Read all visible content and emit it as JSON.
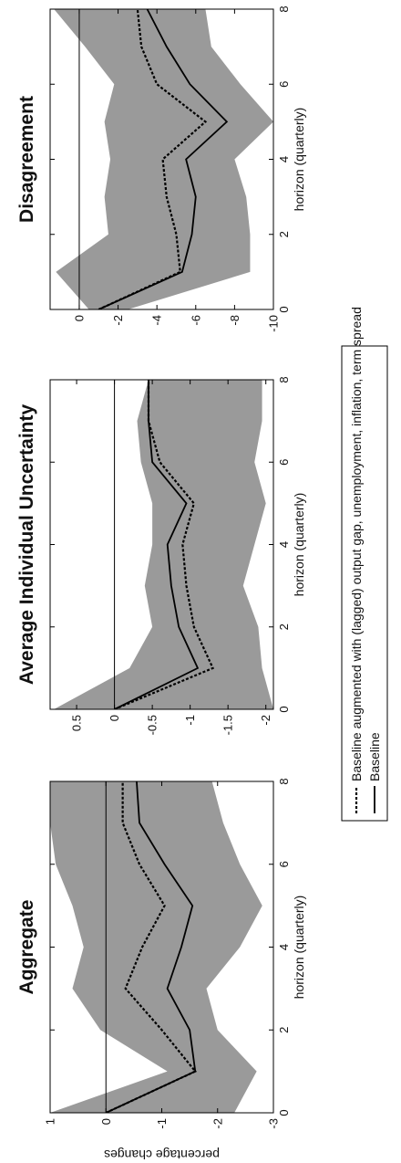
{
  "chart_data": [
    {
      "type": "line",
      "title": "Aggregate",
      "xlabel": "horizon (quarterly)",
      "ylabel": "percentage changes",
      "xlim": [
        0,
        8
      ],
      "ylim": [
        -3,
        1
      ],
      "xticks": [
        0,
        2,
        4,
        6,
        8
      ],
      "yticks": [
        1,
        0,
        -1,
        -2,
        -3
      ],
      "ytick_labels": [
        "1",
        "0",
        "-1",
        "-2",
        "-3"
      ],
      "x": [
        0,
        1,
        2,
        3,
        4,
        5,
        6,
        7,
        8
      ],
      "band_upper": [
        1.0,
        -1.1,
        0.1,
        0.6,
        0.4,
        0.6,
        0.9,
        1.0,
        1.0
      ],
      "band_lower": [
        -2.3,
        -2.7,
        -2.0,
        -1.8,
        -2.4,
        -2.8,
        -2.4,
        -2.1,
        -1.9
      ],
      "series": [
        {
          "name": "Baseline augmented with (lagged) output gap, unemployment, inflation, term spread",
          "style": "dotted",
          "values": [
            0.0,
            -1.6,
            -1.0,
            -0.35,
            -0.65,
            -1.05,
            -0.6,
            -0.3,
            -0.3
          ]
        },
        {
          "name": "Baseline",
          "style": "solid",
          "values": [
            0.0,
            -1.6,
            -1.5,
            -1.1,
            -1.35,
            -1.55,
            -1.05,
            -0.6,
            -0.55
          ]
        }
      ]
    },
    {
      "type": "line",
      "title": "Average Individual Uncertainty",
      "xlabel": "horizon (quarterly)",
      "ylabel": "",
      "xlim": [
        0,
        8
      ],
      "ylim": [
        -2.1,
        0.85
      ],
      "xticks": [
        0,
        2,
        4,
        6,
        8
      ],
      "yticks": [
        0.5,
        0,
        -0.5,
        -1,
        -1.5,
        -2
      ],
      "ytick_labels": [
        "0.5",
        "0",
        "-0.5",
        "-1",
        "-1.5",
        "-2"
      ],
      "x": [
        0,
        1,
        2,
        3,
        4,
        5,
        6,
        7,
        8
      ],
      "band_upper": [
        0.8,
        -0.2,
        -0.5,
        -0.4,
        -0.5,
        -0.5,
        -0.35,
        -0.3,
        -0.45
      ],
      "band_lower": [
        -2.1,
        -1.95,
        -1.9,
        -1.7,
        -1.85,
        -2.0,
        -1.85,
        -1.95,
        -1.95
      ],
      "series": [
        {
          "name": "Baseline augmented with (lagged) output gap, unemployment, inflation, term spread",
          "style": "dotted",
          "values": [
            0.0,
            -1.3,
            -1.05,
            -0.95,
            -0.9,
            -1.05,
            -0.6,
            -0.45,
            -0.45
          ]
        },
        {
          "name": "Baseline",
          "style": "solid",
          "values": [
            0.0,
            -1.1,
            -0.85,
            -0.75,
            -0.7,
            -0.95,
            -0.5,
            -0.45,
            -0.45
          ]
        }
      ]
    },
    {
      "type": "line",
      "title": "Disagreement",
      "xlabel": "horizon (quarterly)",
      "ylabel": "",
      "xlim": [
        0,
        8
      ],
      "ylim": [
        -10,
        1.5
      ],
      "xticks": [
        0,
        2,
        4,
        6,
        8
      ],
      "yticks": [
        0,
        -2,
        -4,
        -6,
        -8,
        -10
      ],
      "ytick_labels": [
        "0",
        "-2",
        "-4",
        "-6",
        "-8",
        "-10"
      ],
      "x": [
        0,
        1,
        2,
        3,
        4,
        5,
        6,
        7,
        8
      ],
      "band_upper": [
        -0.5,
        1.2,
        -1.5,
        -1.3,
        -1.6,
        -1.3,
        -1.8,
        -0.3,
        1.3
      ],
      "band_lower": [
        -2.5,
        -8.8,
        -8.8,
        -8.6,
        -8.0,
        -10.0,
        -8.3,
        -6.8,
        -6.5
      ],
      "series": [
        {
          "name": "Baseline augmented with (lagged) output gap, unemployment, inflation, term spread",
          "style": "dotted",
          "values": [
            -1.0,
            -5.2,
            -5.0,
            -4.5,
            -4.3,
            -6.5,
            -4.0,
            -3.2,
            -3.0
          ]
        },
        {
          "name": "Baseline",
          "style": "solid",
          "values": [
            -1.0,
            -5.3,
            -5.8,
            -6.0,
            -5.5,
            -7.6,
            -5.7,
            -4.5,
            -3.5
          ]
        }
      ]
    }
  ],
  "legend": {
    "items": [
      {
        "label": "Baseline augmented with (lagged) output gap, unemployment, inflation, term spread",
        "style": "dotted"
      },
      {
        "label": "Baseline",
        "style": "solid"
      }
    ]
  },
  "colors": {
    "band": "#9a9a9a",
    "line": "#000000",
    "background": "#ffffff"
  }
}
